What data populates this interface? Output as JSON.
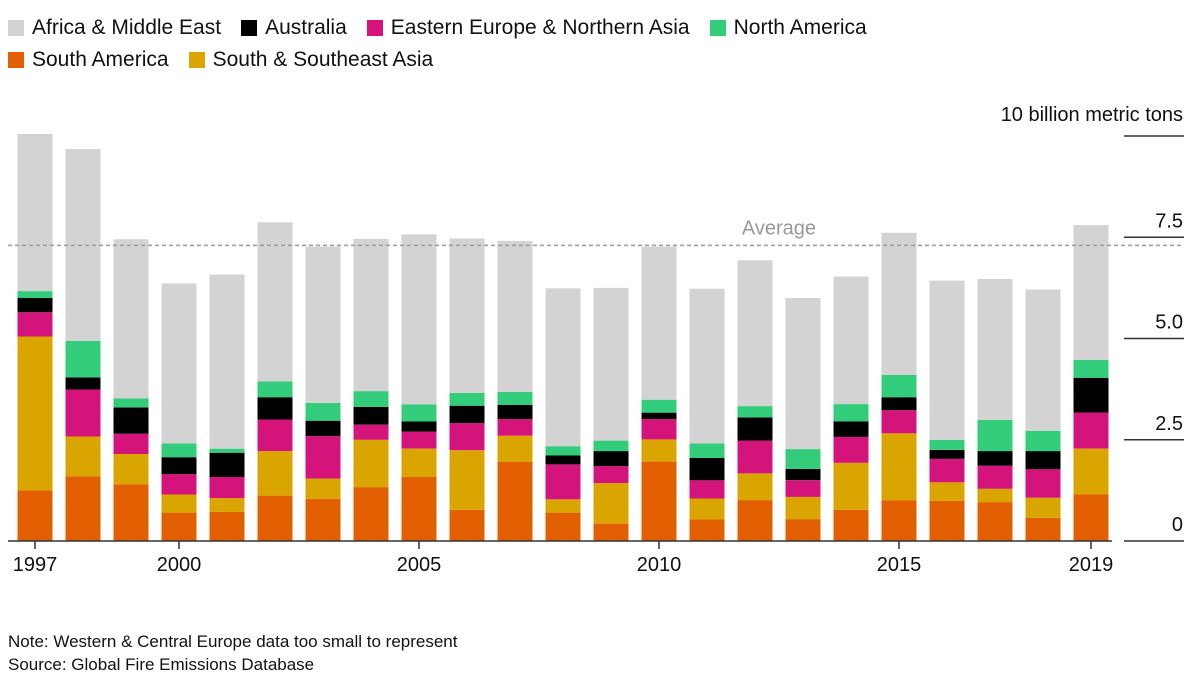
{
  "chart_data": {
    "type": "bar",
    "stacked": true,
    "title": "",
    "unit_label": "10 billion metric tons",
    "x": [
      1997,
      1998,
      1999,
      2000,
      2001,
      2002,
      2003,
      2004,
      2005,
      2006,
      2007,
      2008,
      2009,
      2010,
      2011,
      2012,
      2013,
      2014,
      2015,
      2016,
      2017,
      2018,
      2019
    ],
    "x_tick_labels": [
      {
        "year": 1997,
        "label": "1997"
      },
      {
        "year": 2000,
        "label": "2000"
      },
      {
        "year": 2005,
        "label": "2005"
      },
      {
        "year": 2010,
        "label": "2010"
      },
      {
        "year": 2015,
        "label": "2015"
      },
      {
        "year": 2019,
        "label": "2019"
      }
    ],
    "y_ticks": [
      {
        "value": 0,
        "label": "0"
      },
      {
        "value": 2.5,
        "label": "2.5"
      },
      {
        "value": 5.0,
        "label": "5.0"
      },
      {
        "value": 7.5,
        "label": "7.5"
      },
      {
        "value": 10,
        "label": ""
      }
    ],
    "ylim": [
      0,
      10
    ],
    "average": {
      "value": 7.3,
      "label": "Average"
    },
    "series": [
      {
        "name": "South America",
        "color": "#e15f00",
        "values": [
          1.25,
          1.6,
          1.4,
          0.7,
          0.72,
          1.12,
          1.04,
          1.33,
          1.58,
          0.77,
          1.95,
          0.7,
          0.43,
          1.96,
          0.53,
          1.01,
          0.54,
          0.77,
          1.0,
          0.99,
          0.96,
          0.57,
          1.15
        ]
      },
      {
        "name": "South & Southeast Asia",
        "color": "#dba500",
        "values": [
          3.8,
          0.98,
          0.75,
          0.45,
          0.34,
          1.1,
          0.5,
          1.17,
          0.7,
          1.47,
          0.65,
          0.33,
          1.0,
          0.55,
          0.52,
          0.66,
          0.55,
          1.16,
          1.66,
          0.46,
          0.33,
          0.5,
          1.13
        ]
      },
      {
        "name": "Eastern Europe & Northern Asia",
        "color": "#d4137b",
        "values": [
          0.6,
          1.16,
          0.5,
          0.5,
          0.52,
          0.78,
          1.05,
          0.37,
          0.42,
          0.67,
          0.41,
          0.86,
          0.42,
          0.5,
          0.45,
          0.81,
          0.41,
          0.64,
          0.57,
          0.58,
          0.57,
          0.7,
          0.89
        ]
      },
      {
        "name": "Australia",
        "color": "#000000",
        "values": [
          0.35,
          0.3,
          0.65,
          0.42,
          0.6,
          0.55,
          0.38,
          0.44,
          0.25,
          0.43,
          0.35,
          0.22,
          0.37,
          0.16,
          0.55,
          0.57,
          0.28,
          0.38,
          0.32,
          0.22,
          0.36,
          0.45,
          0.86
        ]
      },
      {
        "name": "North America",
        "color": "#33cc7a",
        "values": [
          0.17,
          0.9,
          0.22,
          0.34,
          0.1,
          0.39,
          0.44,
          0.39,
          0.42,
          0.32,
          0.32,
          0.23,
          0.26,
          0.32,
          0.36,
          0.28,
          0.49,
          0.43,
          0.55,
          0.25,
          0.77,
          0.5,
          0.44
        ]
      },
      {
        "name": "Africa & Middle East",
        "color": "#d3d3d3",
        "values": [
          3.88,
          4.74,
          3.93,
          3.95,
          4.3,
          3.93,
          3.86,
          3.76,
          4.2,
          3.81,
          3.73,
          3.9,
          3.77,
          3.78,
          3.82,
          3.6,
          3.73,
          3.15,
          3.51,
          3.93,
          3.48,
          3.49,
          3.33
        ]
      }
    ],
    "legend": {
      "placement": "top-left",
      "rows": [
        [
          "Africa & Middle East",
          "Australia",
          "Eastern Europe & Northern Asia",
          "North America"
        ],
        [
          "South America",
          "South & Southeast Asia"
        ]
      ]
    }
  },
  "footer": {
    "note": "Note: Western & Central Europe data too small to represent",
    "source": "Source: Global Fire Emissions Database"
  }
}
